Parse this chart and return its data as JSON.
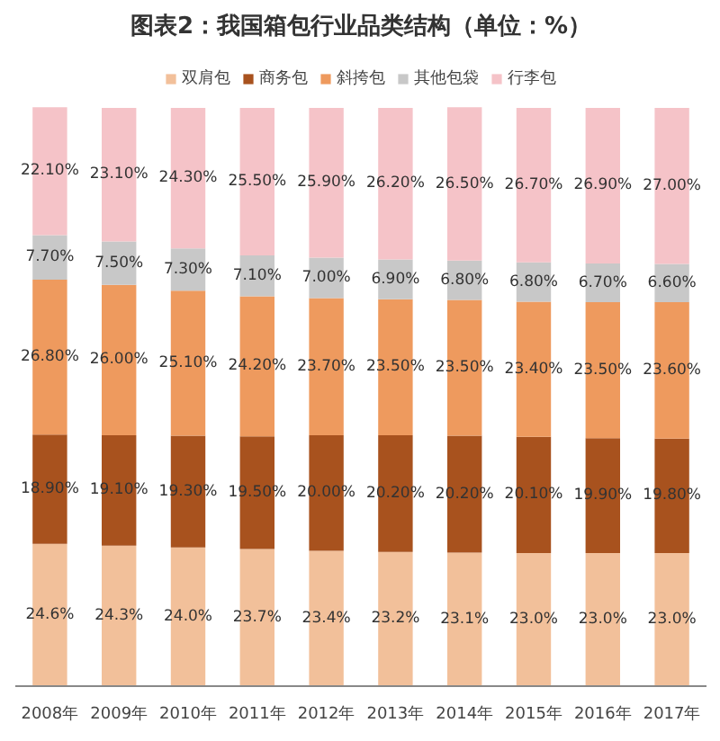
{
  "chart_data": {
    "type": "bar",
    "title": "图表2：我国箱包行业品类结构（单位：%）",
    "stacked": true,
    "legend": "top",
    "categories": [
      "2008年",
      "2009年",
      "2010年",
      "2011年",
      "2012年",
      "2013年",
      "2014年",
      "2015年",
      "2016年",
      "2017年"
    ],
    "series": [
      {
        "name": "双肩包",
        "color": "#f2c09a",
        "values": [
          24.6,
          24.3,
          24.0,
          23.7,
          23.4,
          23.2,
          23.1,
          23.0,
          23.0,
          23.0
        ],
        "value_labels": [
          "24.6%",
          "24.3%",
          "24.0%",
          "23.7%",
          "23.4%",
          "23.2%",
          "23.1%",
          "23.0%",
          "23.0%",
          "23.0%"
        ]
      },
      {
        "name": "商务包",
        "color": "#a8521e",
        "values": [
          18.9,
          19.1,
          19.3,
          19.5,
          20.0,
          20.2,
          20.2,
          20.1,
          19.9,
          19.8
        ],
        "value_labels": [
          "18.90%",
          "19.10%",
          "19.30%",
          "19.50%",
          "20.00%",
          "20.20%",
          "20.20%",
          "20.10%",
          "19.90%",
          "19.80%"
        ]
      },
      {
        "name": "斜挎包",
        "color": "#ee9a5e",
        "values": [
          26.8,
          26.0,
          25.1,
          24.2,
          23.7,
          23.5,
          23.5,
          23.4,
          23.5,
          23.6
        ],
        "value_labels": [
          "26.80%",
          "26.00%",
          "25.10%",
          "24.20%",
          "23.70%",
          "23.50%",
          "23.50%",
          "23.40%",
          "23.50%",
          "23.60%"
        ]
      },
      {
        "name": "其他包袋",
        "color": "#c8c8c8",
        "values": [
          7.7,
          7.5,
          7.3,
          7.1,
          7.0,
          6.9,
          6.8,
          6.8,
          6.7,
          6.6
        ],
        "value_labels": [
          "7.70%",
          "7.50%",
          "7.30%",
          "7.10%",
          "7.00%",
          "6.90%",
          "6.80%",
          "6.80%",
          "6.70%",
          "6.60%"
        ]
      },
      {
        "name": "行李包",
        "color": "#f5c3c8",
        "values": [
          22.1,
          23.1,
          24.3,
          25.5,
          25.9,
          26.2,
          26.5,
          26.7,
          26.9,
          27.0
        ],
        "value_labels": [
          "22.10%",
          "23.10%",
          "24.30%",
          "25.50%",
          "25.90%",
          "26.20%",
          "26.50%",
          "26.70%",
          "26.90%",
          "27.00%"
        ]
      }
    ]
  }
}
